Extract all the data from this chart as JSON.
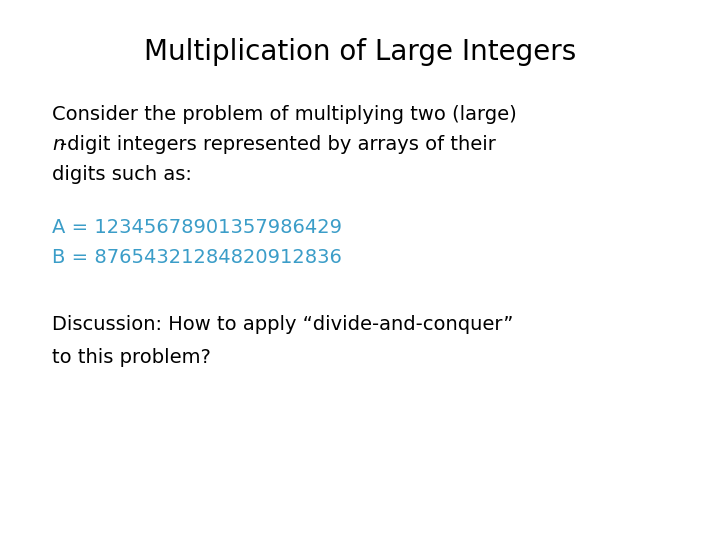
{
  "title": "Multiplication of Large Integers",
  "background_color": "#ffffff",
  "title_color": "#000000",
  "title_fontsize": 20,
  "body_color": "#000000",
  "body_fontsize": 14,
  "blue_color": "#3b9dc8",
  "line1": "Consider the problem of multiplying two (large)",
  "line2_italic": "n",
  "line2_rest": "-digit integers represented by arrays of their",
  "line3": "digits such as:",
  "lineA": "A = 12345678901357986429",
  "lineB": "B = 87654321284820912836",
  "disc_line1": "Discussion: How to apply “divide-and-conquer”",
  "disc_line2": "to this problem?",
  "fig_width": 7.2,
  "fig_height": 5.4,
  "dpi": 100
}
